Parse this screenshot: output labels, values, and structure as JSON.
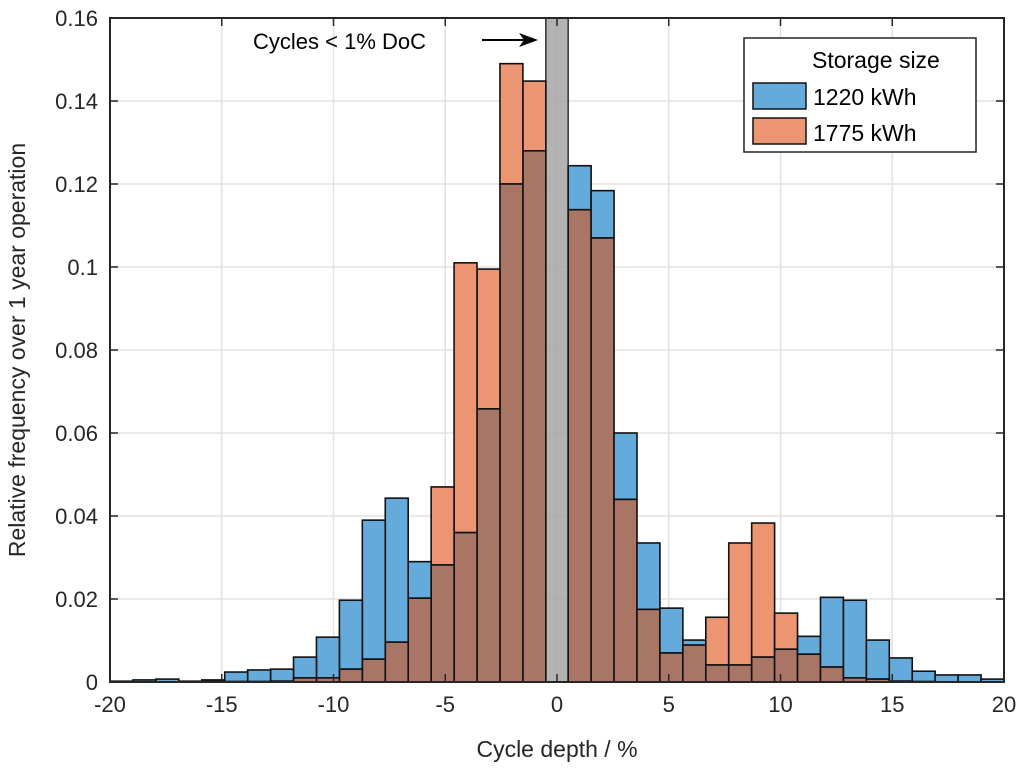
{
  "chart_data": {
    "type": "bar",
    "subtype": "overlaid histogram",
    "title": "",
    "xlabel": "Cycle depth / %",
    "ylabel": "Relative frequency over 1 year operation",
    "xlim": [
      -20,
      20
    ],
    "ylim": [
      0,
      0.16
    ],
    "xticks": [
      -20,
      -15,
      -10,
      -5,
      0,
      5,
      10,
      15,
      20
    ],
    "xtick_labels": [
      "-20",
      "-15",
      "-10",
      "-5",
      "0",
      "5",
      "10",
      "15",
      "20"
    ],
    "yticks": [
      0,
      0.02,
      0.04,
      0.06,
      0.08,
      0.1,
      0.12,
      0.14,
      0.16
    ],
    "ytick_labels": [
      "0",
      "0.02",
      "0.04",
      "0.06",
      "0.08",
      "0.1",
      "0.12",
      "0.14",
      "0.16"
    ],
    "grid": true,
    "bin_width": 1.0263,
    "excluded_band": {
      "range": [
        -0.5,
        0.5
      ],
      "color": "#a6a6a6",
      "label": "Cycles < 1% DoC"
    },
    "annotation": {
      "text": "Cycles < 1% DoC",
      "arrow": "right",
      "points_to": 0
    },
    "legend": {
      "title": "Storage size",
      "position": "top-right",
      "entries": [
        "1220 kWh",
        "1775 kWh"
      ]
    },
    "bin_edges_note": "negative bins extend leftward from -0.5, positive bins rightward from 0.5",
    "bins_negative_centers": [
      -1.01,
      -2.04,
      -3.07,
      -4.09,
      -5.12,
      -6.14,
      -7.17,
      -8.2,
      -9.22,
      -10.25,
      -11.28,
      -12.3,
      -13.33,
      -14.35,
      -15.38,
      -16.41,
      -17.43,
      -18.46,
      -19.49
    ],
    "bins_positive_centers": [
      1.01,
      2.04,
      3.07,
      4.09,
      5.12,
      6.14,
      7.17,
      8.2,
      9.22,
      10.25,
      11.28,
      12.3,
      13.33,
      14.35,
      15.38,
      16.41,
      17.43,
      18.46,
      19.49
    ],
    "series": [
      {
        "name": "1220 kWh",
        "color": "#64aadb",
        "negative": [
          0.128,
          0.12,
          0.0658,
          0.036,
          0.0282,
          0.029,
          0.0443,
          0.039,
          0.0197,
          0.0108,
          0.006,
          0.0031,
          0.0029,
          0.0024,
          0.0005,
          0.0002,
          0.0007,
          0.0005,
          0.0002
        ],
        "positive": [
          0.1244,
          0.1184,
          0.06,
          0.0335,
          0.0178,
          0.0101,
          0.0041,
          0.0041,
          0.006,
          0.0079,
          0.011,
          0.0204,
          0.0197,
          0.0101,
          0.0058,
          0.0026,
          0.0017,
          0.0017,
          0.0007
        ]
      },
      {
        "name": "1775 kWh",
        "color": "#eb9572",
        "negative": [
          0.1448,
          0.149,
          0.0995,
          0.101,
          0.047,
          0.0202,
          0.0096,
          0.0055,
          0.0031,
          0.001,
          0.001,
          0.0002,
          0.0001,
          0.0001,
          0.0001,
          0.0,
          0.0,
          0.0,
          0.0
        ],
        "positive": [
          0.1138,
          0.107,
          0.044,
          0.0175,
          0.007,
          0.0089,
          0.0156,
          0.0335,
          0.0383,
          0.0166,
          0.0067,
          0.0036,
          0.001,
          0.0007,
          0.0002,
          0.0001,
          0.0,
          0.0,
          0.0
        ]
      }
    ],
    "overlap_color": "#a97666"
  }
}
